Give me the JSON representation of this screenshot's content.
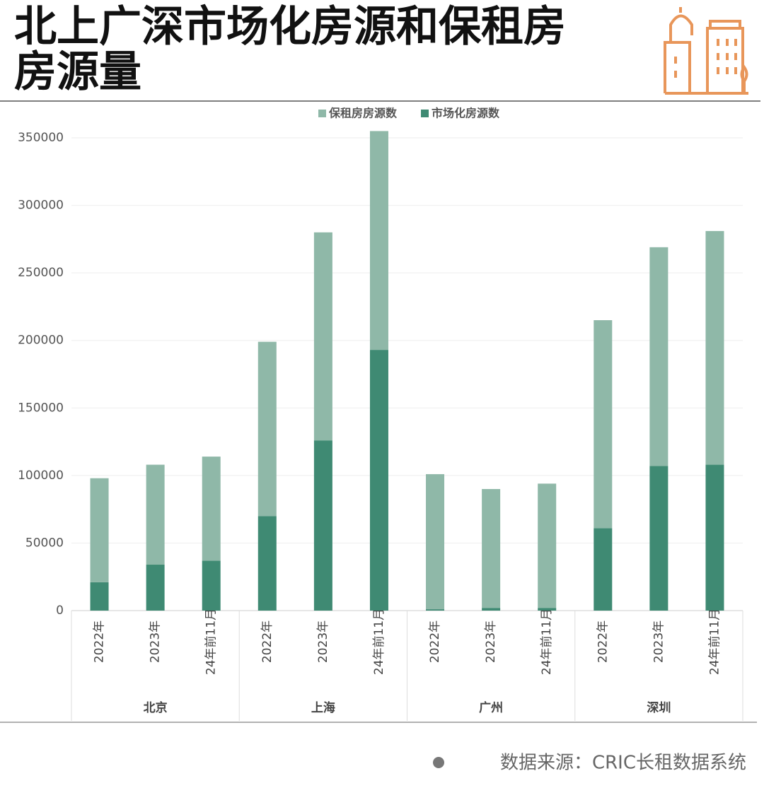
{
  "chart_data": {
    "type": "stacked_bar",
    "title": "北上广深市场化房源和保租房房源量",
    "source": "数据来源：CRIC长租数据系统",
    "groups": [
      {
        "name": "北京",
        "categories": [
          "2022年",
          "2023年",
          "24年前11月"
        ]
      },
      {
        "name": "上海",
        "categories": [
          "2022年",
          "2023年",
          "24年前11月"
        ]
      },
      {
        "name": "广州",
        "categories": [
          "2022年",
          "2023年",
          "24年前11月"
        ]
      },
      {
        "name": "深圳",
        "categories": [
          "2022年",
          "2023年",
          "24年前11月"
        ]
      }
    ],
    "series": [
      {
        "name": "保租房房源数",
        "color": "#8fb8a8",
        "values": [
          77000,
          74000,
          77000,
          129000,
          154000,
          162000,
          100000,
          88000,
          92000,
          154000,
          162000,
          173000
        ]
      },
      {
        "name": "市场化房源数",
        "color": "#3f8a73",
        "values": [
          21000,
          34000,
          37000,
          70000,
          126000,
          193000,
          1000,
          2000,
          2000,
          61000,
          107000,
          108000
        ]
      }
    ],
    "ylim": [
      0,
      350000
    ],
    "yticks": [
      0,
      50000,
      100000,
      150000,
      200000,
      250000,
      300000,
      350000
    ],
    "grid": true
  }
}
